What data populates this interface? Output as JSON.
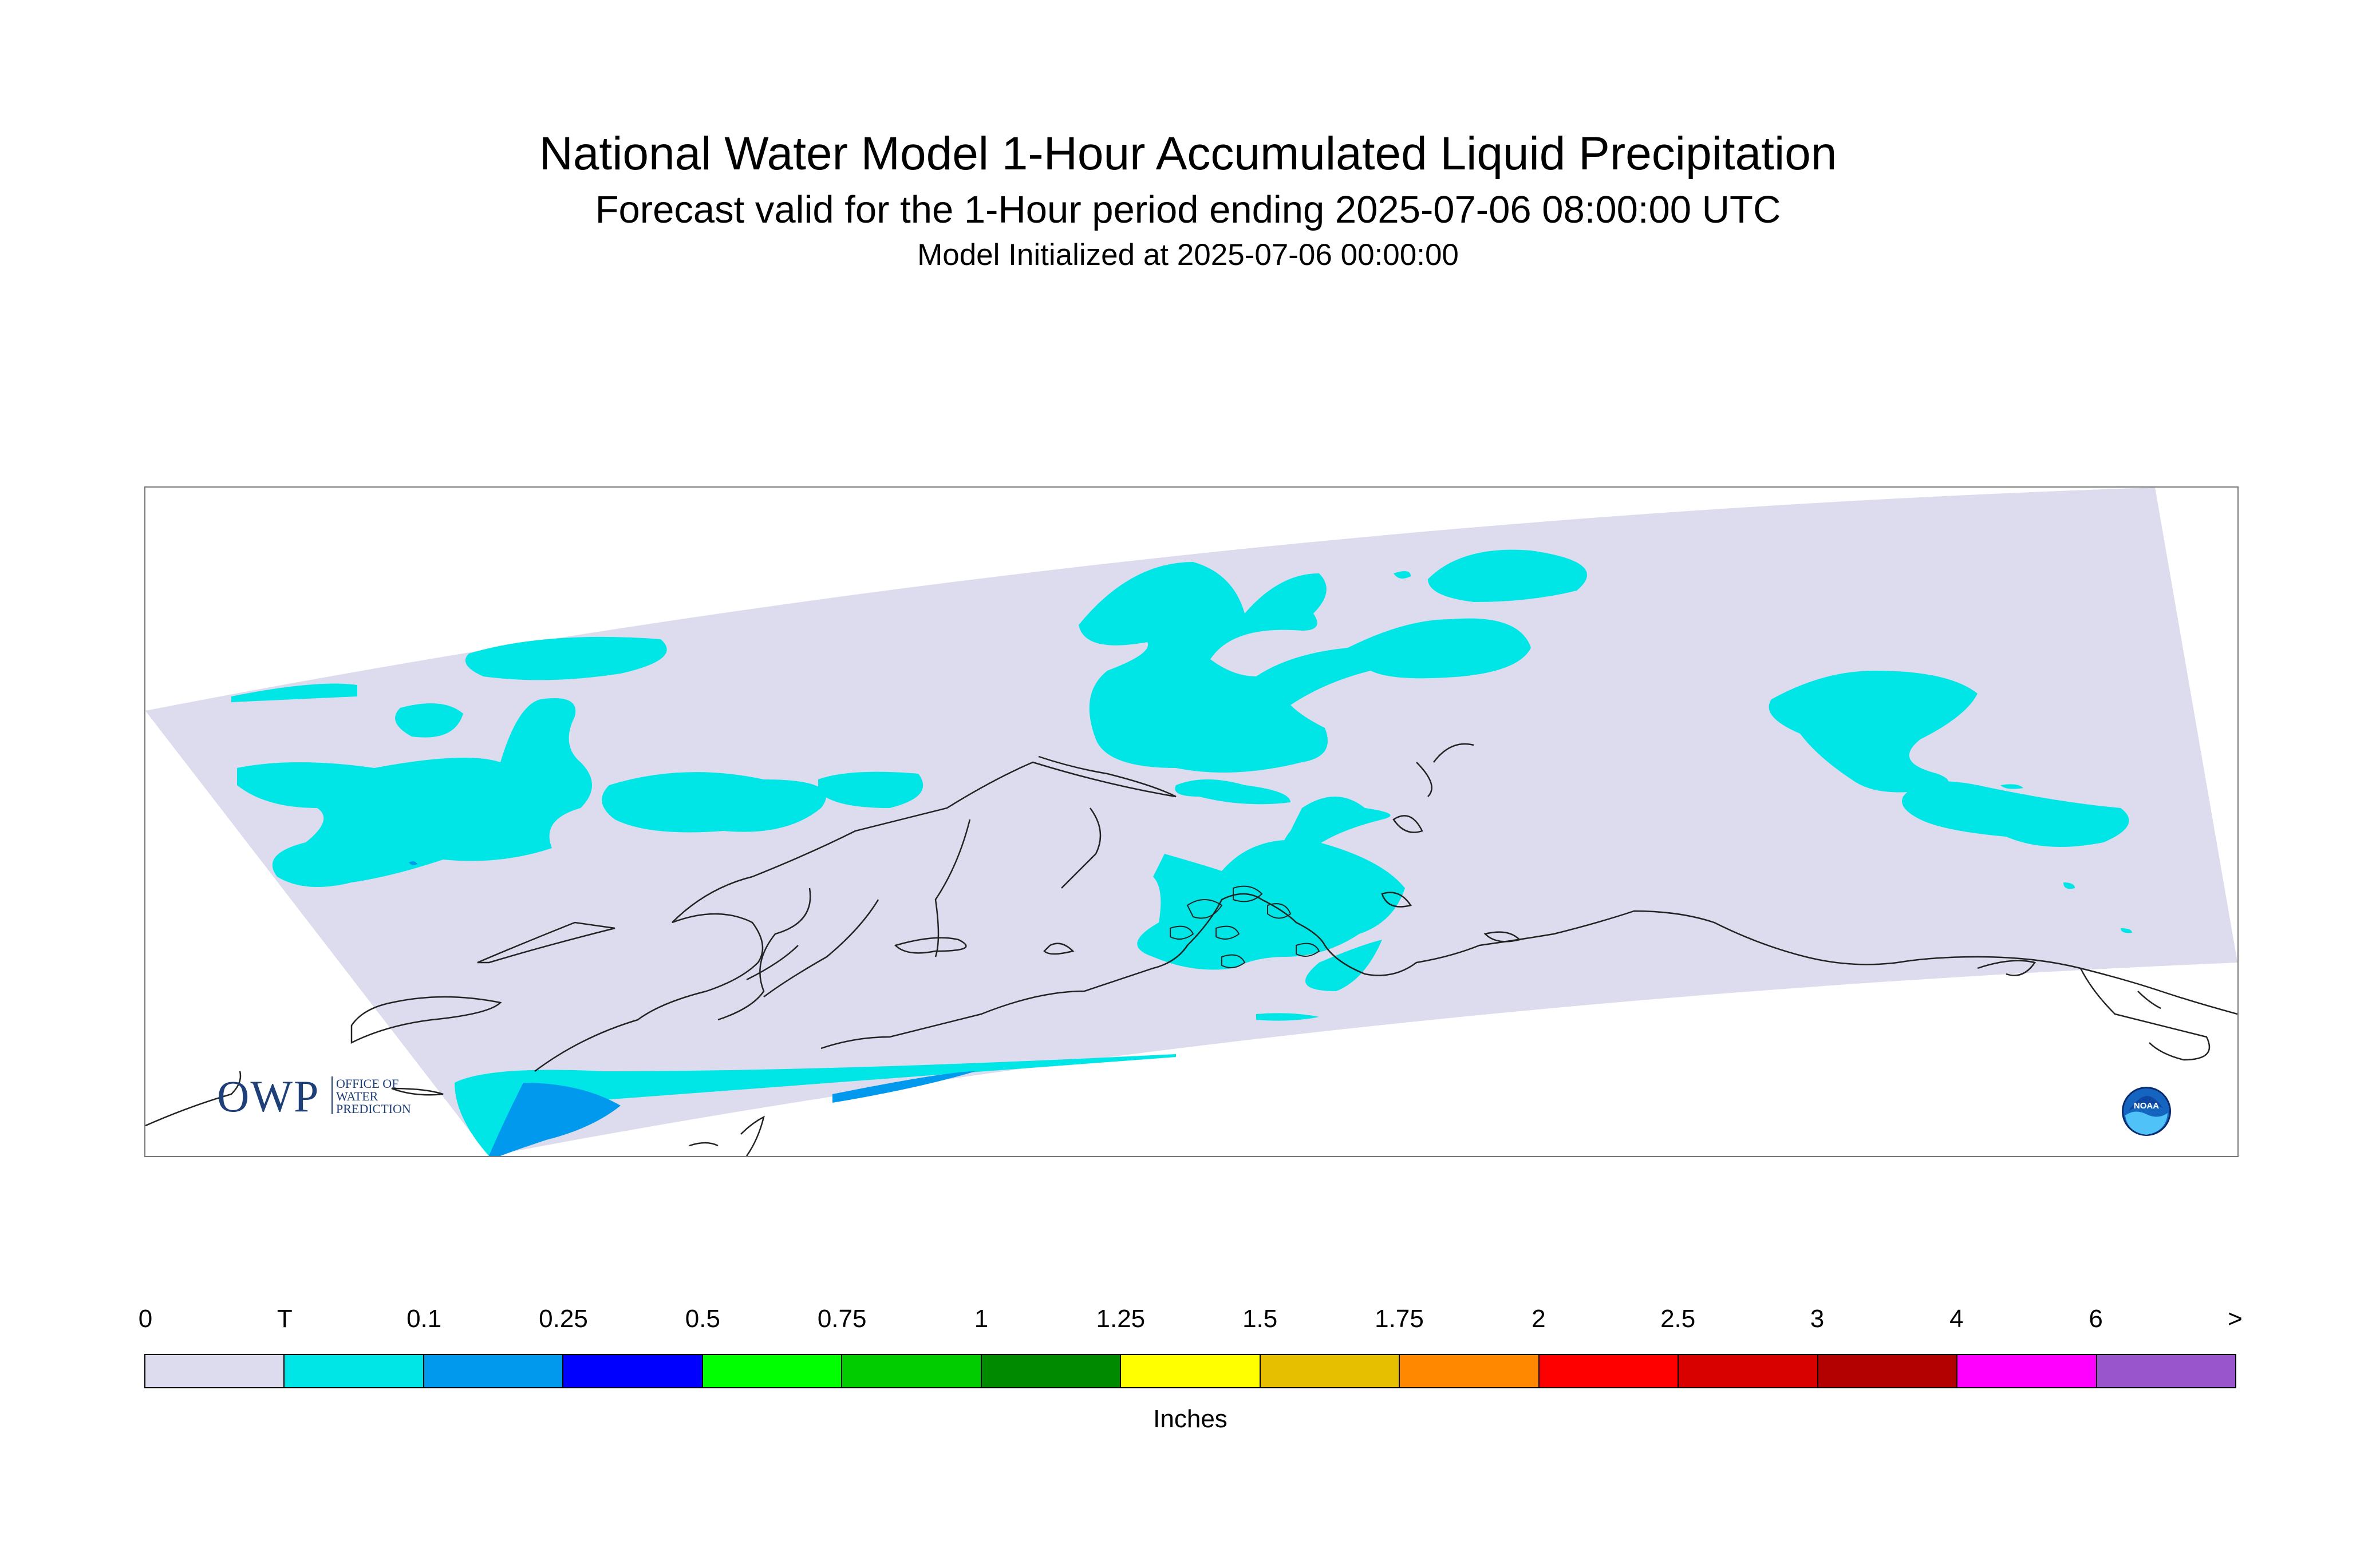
{
  "header": {
    "title": "National Water Model 1-Hour Accumulated Liquid Precipitation",
    "subtitle": "Forecast valid for the 1-Hour period ending 2025-07-06 08:00:00 UTC",
    "init": "Model Initialized at 2025-07-06 00:00:00"
  },
  "map": {
    "domain_fill": "#dcdcee",
    "precip_colors": {
      "trace": "#00e6e6",
      "light": "#0099ee"
    },
    "logos": {
      "owp": {
        "main": "OWP",
        "line1": "OFFICE OF",
        "line2": "WATER",
        "line3": "PREDICTION",
        "color": "#1f3f78"
      },
      "noaa": {
        "text": "NOAA",
        "icon": "noaa-logo"
      }
    }
  },
  "legend": {
    "tick_labels": [
      "0",
      "T",
      "0.1",
      "0.25",
      "0.5",
      "0.75",
      "1",
      "1.25",
      "1.5",
      "1.75",
      "2",
      "2.5",
      "3",
      "4",
      "6",
      ">"
    ],
    "colors": [
      "#dcdcee",
      "#00e6e6",
      "#0099ee",
      "#0000ff",
      "#00ff00",
      "#00cc00",
      "#008a00",
      "#ffff00",
      "#e6bf00",
      "#ff8800",
      "#ff0000",
      "#d90000",
      "#b30000",
      "#ff00ff",
      "#9955cc"
    ],
    "units": "Inches"
  }
}
